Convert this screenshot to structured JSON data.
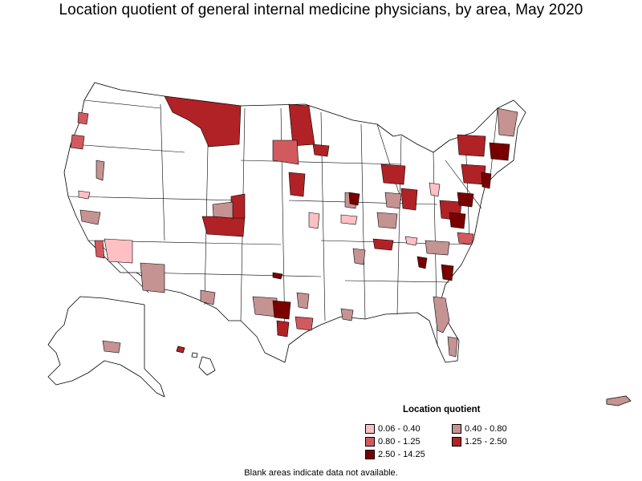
{
  "title": "Location quotient of general internal medicine physicians, by area, May 2020",
  "legend": {
    "title": "Location quotient",
    "items": [
      {
        "label": "0.06 - 0.40",
        "color": "#ffc0c4"
      },
      {
        "label": "0.40 - 0.80",
        "color": "#c49392"
      },
      {
        "label": "0.80 - 1.25",
        "color": "#d25a5e"
      },
      {
        "label": "1.25 - 2.50",
        "color": "#b02225"
      },
      {
        "label": "2.50 - 14.25",
        "color": "#7a0000"
      }
    ]
  },
  "footnote": "Blank areas indicate data not available.",
  "colors": {
    "no_data": "#ffffff",
    "boundary": "#000000"
  }
}
